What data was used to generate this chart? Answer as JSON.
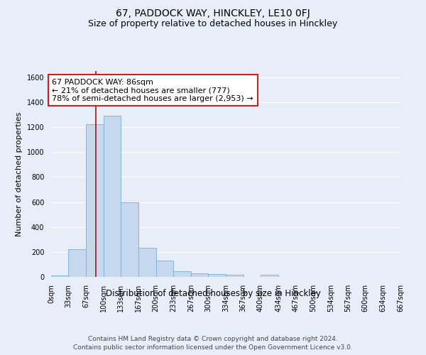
{
  "title1": "67, PADDOCK WAY, HINCKLEY, LE10 0FJ",
  "title2": "Size of property relative to detached houses in Hinckley",
  "xlabel": "Distribution of detached houses by size in Hinckley",
  "ylabel": "Number of detached properties",
  "footer1": "Contains HM Land Registry data © Crown copyright and database right 2024.",
  "footer2": "Contains public sector information licensed under the Open Government Licence v3.0.",
  "bin_edges": [
    0,
    33,
    67,
    100,
    133,
    167,
    200,
    233,
    267,
    300,
    334,
    367,
    400,
    434,
    467,
    500,
    534,
    567,
    600,
    634,
    667
  ],
  "bar_heights": [
    10,
    220,
    1225,
    1290,
    595,
    235,
    130,
    45,
    30,
    25,
    15,
    0,
    15,
    0,
    0,
    0,
    0,
    0,
    0,
    0
  ],
  "bar_color": "#c5d8ed",
  "bar_edge_color": "#7aafd4",
  "property_size": 86,
  "vline_color": "#aa1111",
  "annotation_text": "67 PADDOCK WAY: 86sqm\n← 21% of detached houses are smaller (777)\n78% of semi-detached houses are larger (2,953) →",
  "annotation_box_color": "white",
  "annotation_box_edge": "#cc2222",
  "ylim": [
    0,
    1650
  ],
  "yticks": [
    0,
    200,
    400,
    600,
    800,
    1000,
    1200,
    1400,
    1600
  ],
  "background_color": "#e8eef8",
  "grid_color": "white",
  "title1_fontsize": 10,
  "title2_fontsize": 9,
  "xlabel_fontsize": 8.5,
  "ylabel_fontsize": 8,
  "tick_fontsize": 7,
  "annotation_fontsize": 8,
  "footer_fontsize": 6.5
}
